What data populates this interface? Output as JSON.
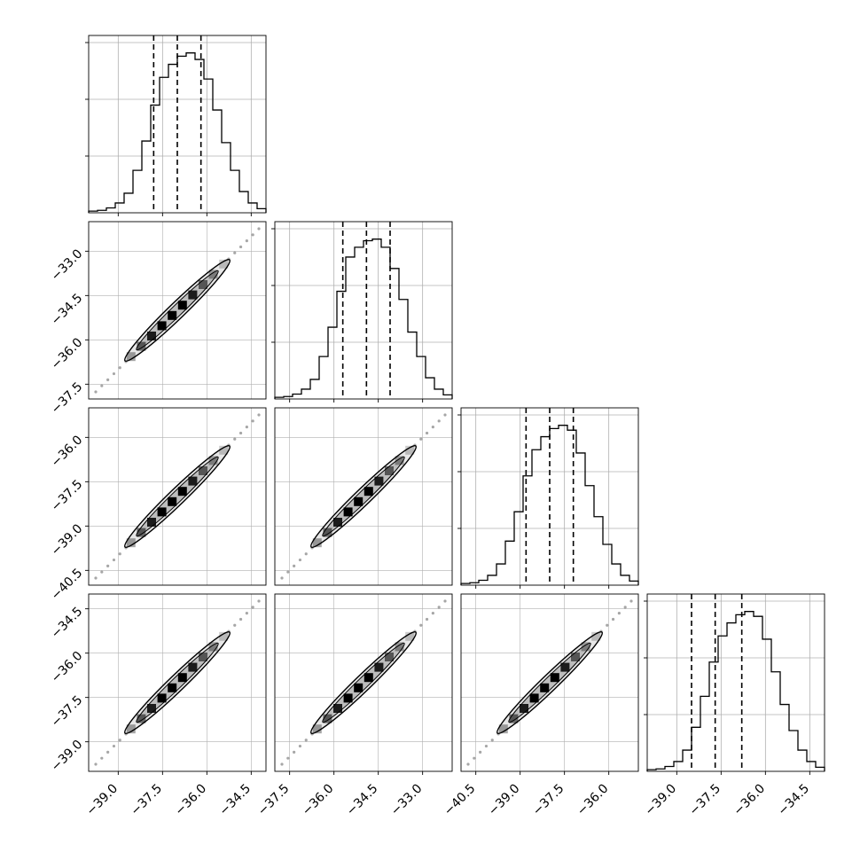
{
  "chart_data": {
    "type": "scatter",
    "variant": "corner-plot",
    "parameters": 4,
    "grid": true,
    "colors": {
      "line": "#000000",
      "grid": "#b0b0b0",
      "density": "#000000",
      "background": "#ffffff"
    },
    "axes": [
      {
        "index": 0,
        "range": [
          -40.0,
          -34.0
        ],
        "ticks": [
          -39.0,
          -37.5,
          -36.0,
          -34.5
        ],
        "tick_labels": [
          "−39.0",
          "−37.5",
          "−36.0",
          "−34.5"
        ]
      },
      {
        "index": 1,
        "range": [
          -38.0,
          -32.0
        ],
        "ticks": [
          -37.5,
          -36.0,
          -34.5,
          -33.0
        ],
        "tick_labels": [
          "−37.5",
          "−36.0",
          "−34.5",
          "−33.0"
        ]
      },
      {
        "index": 2,
        "range": [
          -41.0,
          -35.0
        ],
        "ticks": [
          -40.5,
          -39.0,
          -37.5,
          -36.0
        ],
        "tick_labels": [
          "−40.5",
          "−39.0",
          "−37.5",
          "−36.0"
        ]
      },
      {
        "index": 3,
        "range": [
          -40.0,
          -34.0
        ],
        "ticks": [
          -39.0,
          -37.5,
          -36.0,
          -34.5
        ],
        "tick_labels": [
          "−39.0",
          "−37.5",
          "−36.0",
          "−34.5"
        ]
      }
    ],
    "quantiles": [
      {
        "param": 0,
        "values": [
          -37.8,
          -37.0,
          -36.2
        ]
      },
      {
        "param": 1,
        "values": [
          -35.7,
          -34.9,
          -34.1
        ]
      },
      {
        "param": 2,
        "values": [
          -38.8,
          -38.0,
          -37.2
        ]
      },
      {
        "param": 3,
        "values": [
          -38.5,
          -37.7,
          -36.8
        ]
      }
    ],
    "histograms": [
      {
        "param": 0,
        "bin_start": -40.0,
        "bin_width": 0.3,
        "counts": [
          0.01,
          0.015,
          0.03,
          0.06,
          0.12,
          0.26,
          0.44,
          0.66,
          0.83,
          0.91,
          0.96,
          0.98,
          0.94,
          0.82,
          0.63,
          0.43,
          0.26,
          0.13,
          0.06,
          0.025
        ]
      },
      {
        "param": 1,
        "bin_start": -38.0,
        "bin_width": 0.3,
        "counts": [
          0.01,
          0.015,
          0.03,
          0.06,
          0.12,
          0.26,
          0.44,
          0.66,
          0.87,
          0.93,
          0.97,
          0.98,
          0.93,
          0.8,
          0.61,
          0.41,
          0.26,
          0.13,
          0.06,
          0.025
        ]
      },
      {
        "param": 2,
        "bin_start": -41.0,
        "bin_width": 0.3,
        "counts": [
          0.01,
          0.015,
          0.03,
          0.06,
          0.13,
          0.27,
          0.45,
          0.67,
          0.83,
          0.91,
          0.96,
          0.98,
          0.95,
          0.81,
          0.61,
          0.42,
          0.25,
          0.13,
          0.06,
          0.025
        ]
      },
      {
        "param": 3,
        "bin_start": -40.0,
        "bin_width": 0.3,
        "counts": [
          0.01,
          0.015,
          0.03,
          0.06,
          0.13,
          0.27,
          0.46,
          0.67,
          0.83,
          0.91,
          0.96,
          0.98,
          0.95,
          0.81,
          0.61,
          0.41,
          0.25,
          0.13,
          0.06,
          0.025
        ]
      }
    ],
    "scatter_panels": [
      {
        "row": 1,
        "col": 0,
        "centers": [
          -38.52,
          -38.16,
          -37.8,
          -37.44,
          -37.08,
          -36.72,
          -36.36,
          -36.0,
          -35.64,
          -35.28
        ]
      },
      {
        "row": 2,
        "col": 0
      },
      {
        "row": 2,
        "col": 1
      },
      {
        "row": 3,
        "col": 0
      },
      {
        "row": 3,
        "col": 1
      },
      {
        "row": 3,
        "col": 2
      }
    ],
    "density_levels": [
      0.35,
      0.55,
      0.85,
      1.0,
      1.0,
      1.0,
      0.85,
      0.55,
      0.35,
      0.2
    ]
  }
}
